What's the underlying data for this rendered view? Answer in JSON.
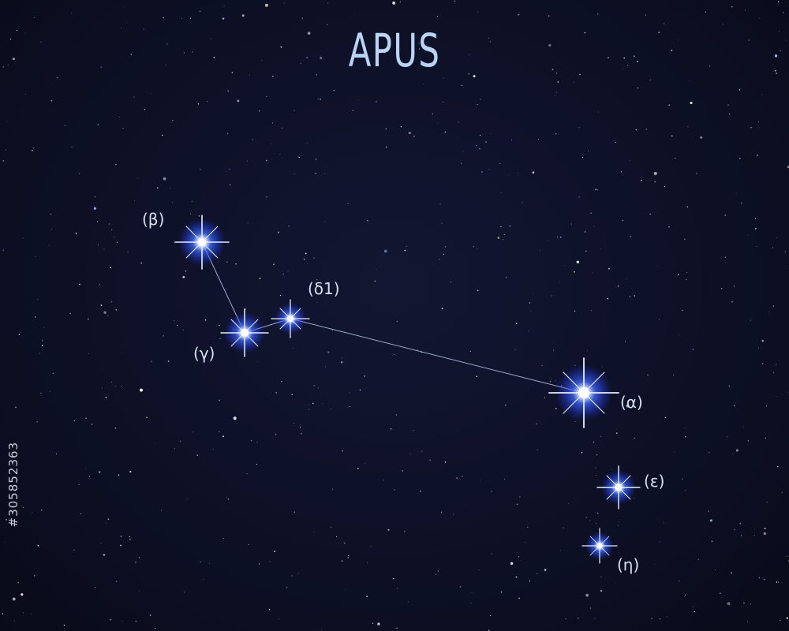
{
  "title": "APUS",
  "watermark_id": "#305852363",
  "stars": [
    {
      "id": "beta",
      "label": "(β)"
    },
    {
      "id": "gamma",
      "label": "(γ)"
    },
    {
      "id": "delta1",
      "label": "(δ1)"
    },
    {
      "id": "alpha",
      "label": "(α)"
    },
    {
      "id": "epsilon",
      "label": "(ε)"
    },
    {
      "id": "eta",
      "label": "(η)"
    }
  ],
  "colors": {
    "background": "#0d1024",
    "title": "#b9d4f4",
    "line": "#b7c6e6",
    "star_core": "#ffffff",
    "star_glow": "#2a5bff"
  }
}
